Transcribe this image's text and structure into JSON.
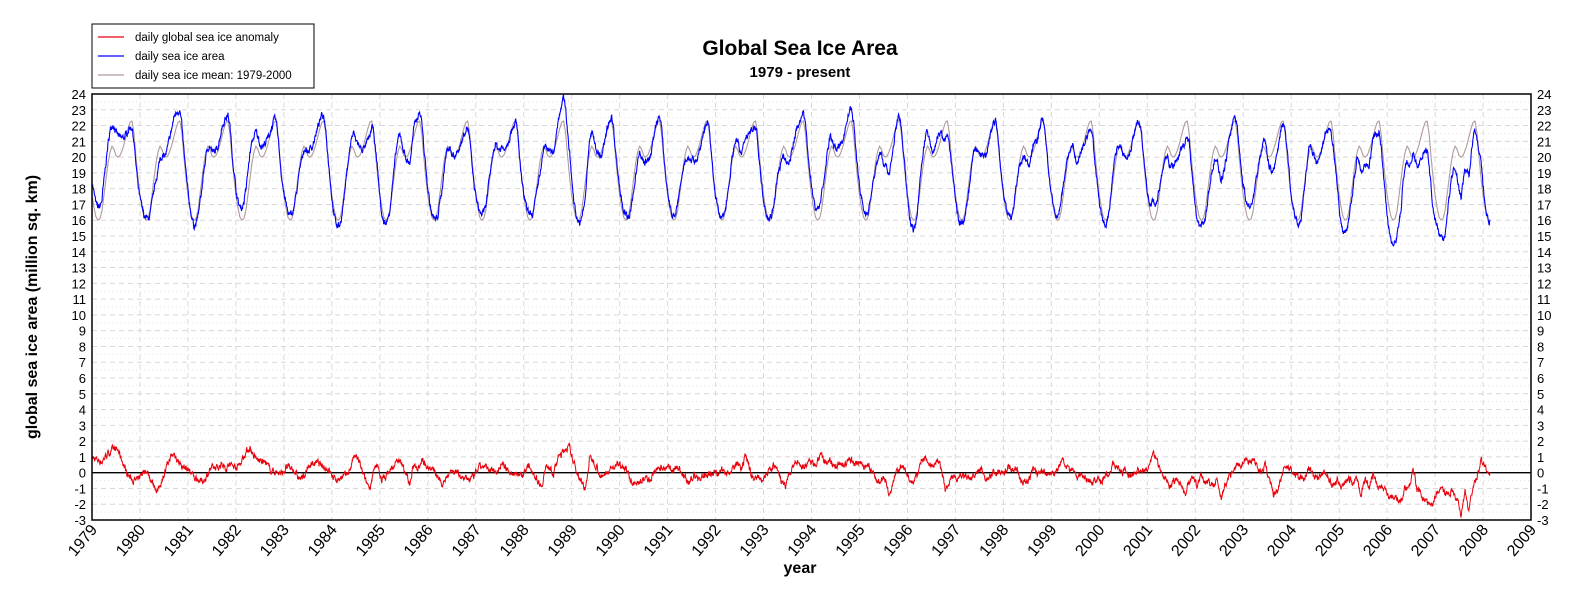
{
  "chart_data": {
    "type": "line",
    "title": "Global Sea Ice Area",
    "subtitle": "1979 - present",
    "xlabel": "year",
    "ylabel": "global sea ice area (million sq. km)",
    "xlim": [
      1979,
      2009
    ],
    "ylim": [
      -3,
      24
    ],
    "xticks": [
      1979,
      1980,
      1981,
      1982,
      1983,
      1984,
      1985,
      1986,
      1987,
      1988,
      1989,
      1990,
      1991,
      1992,
      1993,
      1994,
      1995,
      1996,
      1997,
      1998,
      1999,
      2000,
      2001,
      2002,
      2003,
      2004,
      2005,
      2006,
      2007,
      2008,
      2009
    ],
    "yticks": [
      -3,
      -2,
      -1,
      0,
      1,
      2,
      3,
      4,
      5,
      6,
      7,
      8,
      9,
      10,
      11,
      12,
      13,
      14,
      15,
      16,
      17,
      18,
      19,
      20,
      21,
      22,
      23,
      24
    ],
    "grid": true,
    "reference_line_y": 0,
    "data_end_year": 2008.15,
    "legend": {
      "position": "top-left",
      "entries": [
        {
          "label": "daily global sea ice anomaly",
          "color": "#e8000b"
        },
        {
          "label": "daily sea ice area",
          "color": "#0000ff"
        },
        {
          "label": "daily sea ice mean: 1979-2000",
          "color": "#b09a9a"
        }
      ]
    },
    "series": [
      {
        "name": "daily global sea ice anomaly",
        "color": "#e8000b",
        "resolution": "monthly approximation",
        "values_by_year": {
          "1979": [
            0.9,
            0.8,
            0.7,
            1.1,
            1.3,
            1.5,
            1.4,
            0.8,
            0.1,
            -0.3,
            -0.5,
            -0.5
          ],
          "1980": [
            0.0,
            0.2,
            -0.3,
            -0.8,
            -1.2,
            -0.4,
            0.2,
            0.9,
            1.2,
            0.8,
            0.4,
            0.3
          ],
          "1981": [
            0.1,
            -0.3,
            -0.4,
            -0.6,
            -0.3,
            0.2,
            0.3,
            0.3,
            0.6,
            0.3,
            0.5,
            0.4
          ],
          "1982": [
            0.4,
            0.8,
            1.3,
            1.6,
            1.0,
            0.8,
            0.7,
            0.6,
            0.2,
            0.1,
            0.0,
            -0.1
          ],
          "1983": [
            0.3,
            0.3,
            0.2,
            -0.3,
            -0.4,
            0.0,
            0.5,
            0.6,
            0.6,
            0.4,
            0.3,
            0.1
          ],
          "1984": [
            -0.4,
            -0.4,
            -0.3,
            -0.2,
            0.2,
            1.0,
            0.9,
            0.1,
            -0.6,
            -0.9,
            0.1,
            0.4
          ],
          "1985": [
            -0.5,
            -0.2,
            0.1,
            0.4,
            0.8,
            0.5,
            0.0,
            -0.8,
            0.5,
            0.4,
            0.8,
            0.6
          ],
          "1986": [
            0.3,
            0.1,
            -0.3,
            -0.8,
            -0.3,
            0.1,
            0.1,
            0.0,
            -0.3,
            -0.4,
            -0.4,
            -0.3
          ],
          "1987": [
            0.2,
            0.4,
            0.3,
            0.1,
            0.2,
            0.1,
            0.6,
            0.3,
            0.0,
            -0.1,
            0.0,
            -0.2
          ],
          "1988": [
            0.2,
            0.4,
            0.0,
            -0.5,
            -0.8,
            0.3,
            0.4,
            -0.1,
            0.9,
            1.2,
            1.6,
            1.5
          ],
          "1989": [
            0.6,
            0.0,
            -0.6,
            -1.0,
            0.9,
            0.8,
            0.3,
            -0.4,
            0.0,
            0.2,
            0.3,
            0.5
          ],
          "1990": [
            0.5,
            0.4,
            -0.4,
            -0.9,
            -0.5,
            -0.6,
            -0.3,
            -0.5,
            -0.1,
            0.2,
            0.3,
            0.2
          ],
          "1991": [
            0.3,
            0.2,
            0.4,
            0.0,
            -0.4,
            -0.8,
            -0.1,
            -0.4,
            -0.3,
            -0.2,
            0.0,
            0.0
          ],
          "1992": [
            0.0,
            0.1,
            0.2,
            0.0,
            0.2,
            0.6,
            0.1,
            1.0,
            0.3,
            -0.4,
            -0.3,
            -0.4
          ],
          "1993": [
            -0.1,
            0.1,
            0.4,
            0.1,
            -0.6,
            -0.8,
            -0.2,
            0.5,
            0.6,
            0.4,
            0.5,
            0.7
          ],
          "1994": [
            0.5,
            0.7,
            1.0,
            0.6,
            0.8,
            0.4,
            0.5,
            0.5,
            0.5,
            0.8,
            0.7,
            0.7
          ],
          "1995": [
            0.6,
            0.4,
            0.3,
            -0.1,
            -0.6,
            -0.3,
            -0.5,
            -1.4,
            -0.6,
            0.2,
            0.3,
            0.2
          ],
          "1996": [
            -0.4,
            -0.6,
            -0.1,
            0.8,
            1.0,
            0.6,
            0.3,
            0.9,
            0.2,
            -1.2,
            -0.6,
            -0.3
          ],
          "1997": [
            -0.4,
            -0.3,
            -0.2,
            -0.5,
            -0.2,
            0.0,
            0.2,
            -0.4,
            -0.2,
            0.0,
            0.1,
            0.1
          ],
          "1998": [
            0.2,
            0.3,
            0.2,
            0.1,
            -0.6,
            -0.5,
            -0.5,
            0.4,
            -0.2,
            0.1,
            0.0,
            0.0
          ],
          "1999": [
            0.0,
            0.2,
            0.8,
            0.5,
            0.0,
            0.2,
            -0.4,
            0.0,
            -0.3,
            -0.5,
            -0.6,
            -0.4
          ],
          "2000": [
            -0.5,
            -0.3,
            0.0,
            0.6,
            0.4,
            0.0,
            0.1,
            -0.2,
            0.0,
            0.1,
            0.1,
            0.1
          ],
          "2001": [
            0.4,
            1.2,
            0.7,
            0.0,
            -0.4,
            -0.9,
            -0.6,
            -0.4,
            -0.8,
            -1.3,
            -0.5,
            -0.4
          ],
          "2002": [
            -0.8,
            -0.1,
            -0.6,
            -0.6,
            -0.9,
            -0.5,
            -1.6,
            -0.8,
            -0.3,
            0.2,
            0.5,
            0.5
          ],
          "2003": [
            0.8,
            0.7,
            0.9,
            0.4,
            0.0,
            0.6,
            -0.5,
            -1.3,
            -1.1,
            -0.4,
            0.3,
            0.3
          ],
          "2004": [
            0.0,
            -0.2,
            -0.4,
            -0.2,
            0.3,
            -0.2,
            -0.4,
            -0.2,
            0.1,
            -0.6,
            -0.8,
            -0.4
          ],
          "2005": [
            -1.1,
            -0.7,
            -0.4,
            -0.6,
            -0.4,
            -1.4,
            -0.4,
            -0.9,
            -0.1,
            -0.8,
            -0.9,
            -1.0
          ],
          "2006": [
            -1.4,
            -1.6,
            -1.6,
            -1.8,
            -0.9,
            -0.9,
            0.3,
            -1.0,
            -1.4,
            -1.8,
            -2.0,
            -1.9
          ],
          "2007": [
            -1.2,
            -1.0,
            -1.4,
            -1.2,
            -1.1,
            -1.7,
            -2.6,
            -1.1,
            -2.4,
            -1.0,
            -0.3,
            0.9
          ],
          "2008": [
            0.4,
            -0.2
          ]
        }
      },
      {
        "name": "daily sea ice mean: 1979-2000",
        "color": "#b09a9a",
        "resolution": "semi-monthly climatology, repeated every year",
        "values": [
          17.6,
          16.8,
          16.2,
          16.0,
          16.1,
          16.6,
          17.6,
          18.6,
          19.6,
          20.3,
          20.7,
          20.5,
          20.1,
          20.0,
          20.1,
          20.4,
          20.8,
          21.3,
          21.8,
          22.2,
          22.3,
          21.5,
          20.0,
          18.7
        ]
      },
      {
        "name": "daily sea ice area",
        "color": "#0000ff",
        "derived_from": "mean + anomaly"
      }
    ]
  }
}
